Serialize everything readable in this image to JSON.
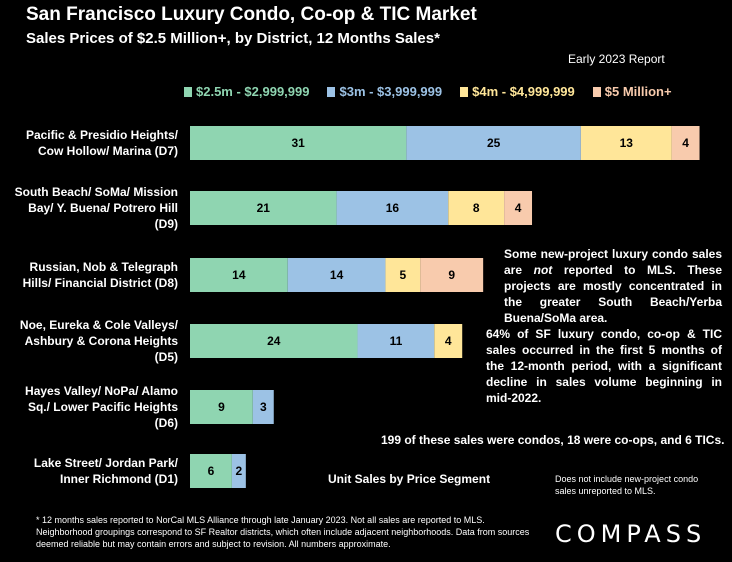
{
  "header": {
    "title": "San Francisco Luxury Condo, Co-op & TIC Market",
    "subtitle": "Sales Prices of $2.5 Million+, by District, 12 Months Sales*",
    "report": "Early 2023 Report"
  },
  "colors": {
    "background": "#000000",
    "green": "#8fd5b1",
    "blue": "#9cc2e5",
    "yellow": "#ffe699",
    "pink": "#f8cbad"
  },
  "chart_data": {
    "type": "bar",
    "orientation": "horizontal",
    "stacked": true,
    "categories": [
      [
        "Pacific & Presidio Heights/",
        "Cow Hollow/ Marina (D7)"
      ],
      [
        "South Beach/ SoMa/ Mission",
        "Bay/ Y. Buena/ Potrero Hill",
        "(D9)"
      ],
      [
        "Russian, Nob & Telegraph",
        "Hills/ Financial District (D8)"
      ],
      [
        "Noe, Eureka & Cole Valleys/",
        "Ashbury & Corona Heights",
        "(D5)"
      ],
      [
        "Hayes Valley/ NoPa/ Alamo",
        "Sq./ Lower Pacific Heights",
        "(D6)"
      ],
      [
        "Lake Street/ Jordan Park/",
        "Inner Richmond (D1)"
      ]
    ],
    "series": [
      {
        "name": "$2.5m - $2,999,999",
        "color": "#8fd5b1",
        "values": [
          31,
          21,
          14,
          24,
          9,
          6
        ]
      },
      {
        "name": "$3m - $3,999,999",
        "color": "#9cc2e5",
        "values": [
          25,
          16,
          14,
          11,
          3,
          2
        ]
      },
      {
        "name": "$4m - $4,999,999",
        "color": "#ffe699",
        "values": [
          13,
          8,
          5,
          4,
          0,
          0
        ]
      },
      {
        "name": "$5 Million+",
        "color": "#f8cbad",
        "values": [
          4,
          4,
          9,
          0,
          0,
          0
        ]
      }
    ],
    "xlabel": "Unit Sales by Price Segment",
    "legend": "top",
    "grid": false
  },
  "notes": {
    "note1": "Some new-project luxury condo sales are not reported to MLS. These projects are mostly concentrated in the greater South Beach/Yerba Buena/SoMa area.",
    "note1_pre": "Some new-project luxury condo sales are ",
    "note1_em": "not",
    "note1_post": " reported to MLS. These projects are mostly concentrated in the greater South Beach/Yerba Buena/SoMa area.",
    "note2": "64% of SF luxury condo, co-op & TIC sales occurred in the first 5 months of the 12-month period, with a significant decline in sales volume beginning in mid-2022.",
    "note3": "199 of these sales were condos, 18 were co-ops, and 6 TICs.",
    "note4": "Does not include new-project condo sales unreported to MLS."
  },
  "footnote": "* 12 months sales reported to NorCal MLS Alliance through late January 2023. Not all sales are reported to MLS. Neighborhood groupings correspond to SF Realtor districts, which often include adjacent neighborhoods. Data from sources deemed reliable but may contain errors and subject to revision. All numbers approximate.",
  "brand": "COMPASS"
}
